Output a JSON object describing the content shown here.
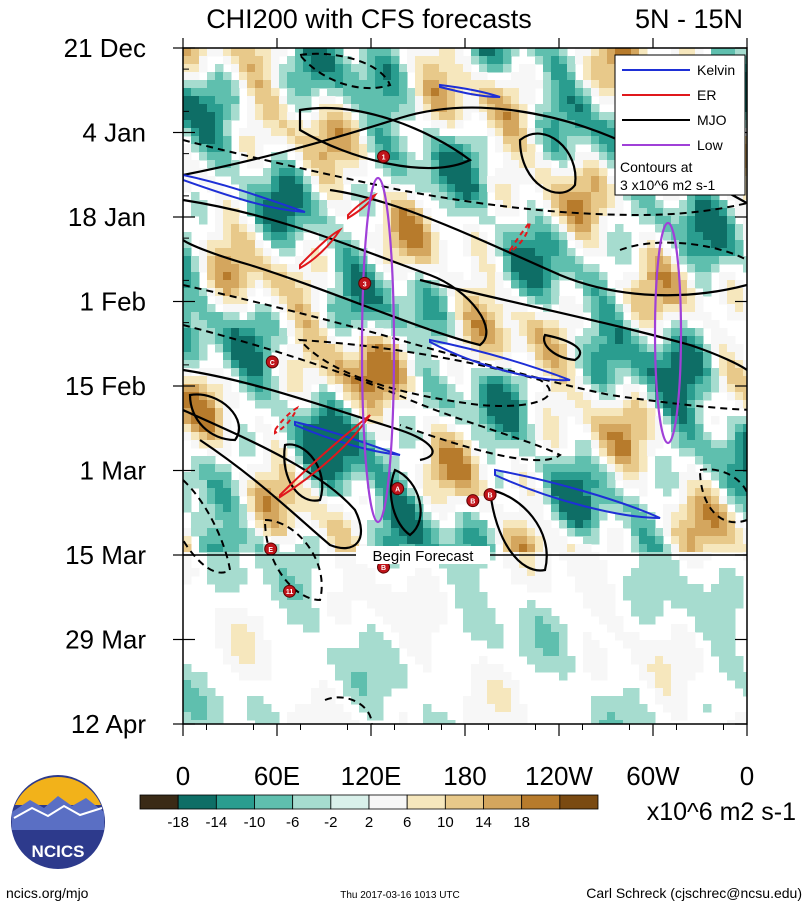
{
  "chart_data": {
    "type": "heatmap",
    "title": "CHI200 with CFS forecasts",
    "region_label": "5N - 15N",
    "y_ticks": [
      "21 Dec",
      "4 Jan",
      "18 Jan",
      "1 Feb",
      "15 Feb",
      "1 Mar",
      "15 Mar",
      "29 Mar",
      "12 Apr"
    ],
    "x_ticks": [
      "0",
      "60E",
      "120E",
      "180",
      "120W",
      "60W",
      "0"
    ],
    "xlim_deg_east": [
      0,
      360
    ],
    "forecast_label": "Begin Forecast",
    "forecast_start": "15 Mar",
    "legend": [
      {
        "name": "Kelvin",
        "color": "#1e2fd6"
      },
      {
        "name": "ER",
        "color": "#e0181c"
      },
      {
        "name": "MJO",
        "color": "#000000"
      },
      {
        "name": "Low",
        "color": "#a040d8"
      }
    ],
    "contour_note_line1": "Contours at",
    "contour_note_line2": "3 x10^6 m2 s-1",
    "colorbar": {
      "tick_labels": [
        "-18",
        "-14",
        "-10",
        "-6",
        "-2",
        "2",
        "6",
        "10",
        "14",
        "18"
      ],
      "colors": [
        "#3a2a16",
        "#0e6e66",
        "#2a9d8f",
        "#5fbfae",
        "#a6dccf",
        "#d9f0ea",
        "#f7f7f7",
        "#f6e7bd",
        "#e8c98a",
        "#d4a65e",
        "#b77b2c",
        "#7a4a12"
      ],
      "units": "x10^6 m2 s-1"
    },
    "storms": [
      {
        "label": "1",
        "lon": 128,
        "day": 18
      },
      {
        "label": "3",
        "lon": 116,
        "day": 39
      },
      {
        "label": "C",
        "lon": 57,
        "day": 52
      },
      {
        "label": "A",
        "lon": 137,
        "day": 73
      },
      {
        "label": "B",
        "lon": 185,
        "day": 75
      },
      {
        "label": "B",
        "lon": 196,
        "day": 74
      },
      {
        "label": "E",
        "lon": 56,
        "day": 83
      },
      {
        "label": "B",
        "lon": 128,
        "day": 86
      },
      {
        "label": "11",
        "lon": 68,
        "day": 90
      }
    ]
  },
  "footer": {
    "logo_text": "NCICS",
    "url": "ncics.org/mjo",
    "timestamp": "Thu 2017-03-16 1013 UTC",
    "author": "Carl Schreck (cjschrec@ncsu.edu)"
  }
}
